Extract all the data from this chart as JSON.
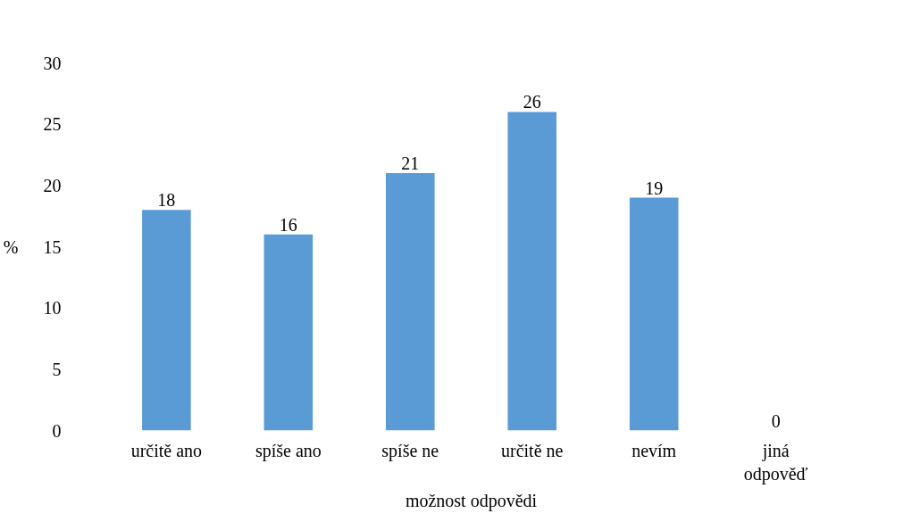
{
  "chart_data": {
    "type": "bar",
    "xlabel": "možnost odpovědi",
    "ylabel": "%",
    "categories": [
      "určitě ano",
      "spíše ano",
      "spíše ne",
      "určitě ne",
      "nevím",
      "jiná odpověď"
    ],
    "values": [
      18,
      16,
      21,
      26,
      19,
      0
    ],
    "color": "#5b9bd5",
    "ylim": [
      0,
      30
    ],
    "yticks": [
      0,
      5,
      10,
      15,
      20,
      25,
      30
    ],
    "grid": false,
    "data_labels": true
  }
}
